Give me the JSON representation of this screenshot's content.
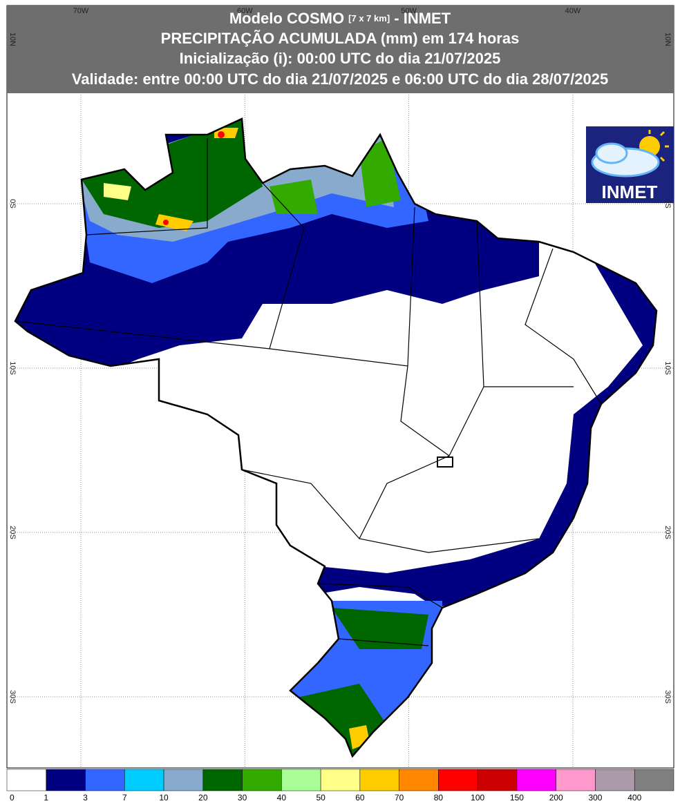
{
  "header": {
    "title_parts": [
      "Modelo COSMO ",
      "[7 x 7 km]",
      " - INMET"
    ],
    "lines": [
      "PRECIPITAÇÃO ACUMULADA (mm) em 174 horas",
      "Inicialização (i): 00:00 UTC do dia 21/07/2025",
      "Validade: entre 00:00 UTC do dia 21/07/2025 e 06:00 UTC do dia 28/07/2025"
    ]
  },
  "map": {
    "longitude_labels": [
      "70W",
      "60W",
      "50W",
      "40W"
    ],
    "latitude_labels": [
      "10N",
      "0S",
      "10S",
      "20S",
      "30S"
    ]
  },
  "logo": {
    "text": "INMET"
  },
  "legend": {
    "colors": [
      "#ffffff",
      "#000080",
      "#3366ff",
      "#00ccff",
      "#88aacc",
      "#006600",
      "#33aa00",
      "#aaff99",
      "#ffff88",
      "#ffcc00",
      "#ff8800",
      "#ff0000",
      "#cc0000",
      "#ff00ff",
      "#ff99cc",
      "#aa99aa",
      "#808080"
    ],
    "labels": [
      0,
      1,
      3,
      7,
      10,
      20,
      30,
      40,
      50,
      60,
      70,
      80,
      100,
      150,
      200,
      300,
      400
    ]
  }
}
